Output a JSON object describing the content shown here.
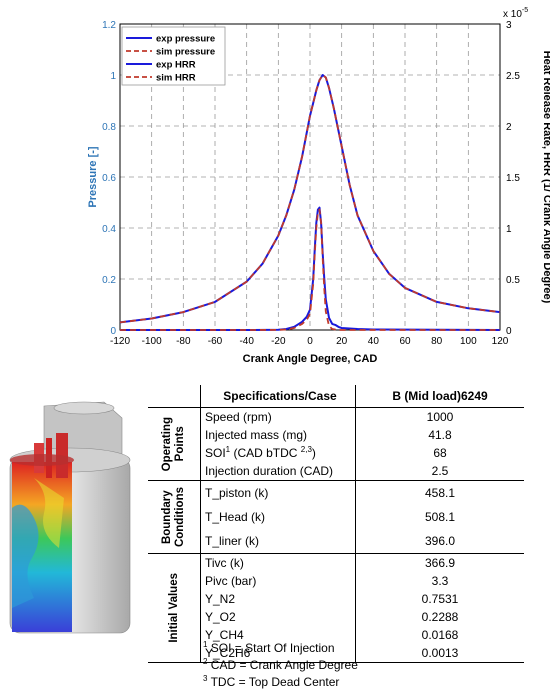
{
  "chart_data": {
    "type": "line",
    "xlabel": "Crank Angle Degree, CAD",
    "ylabel_left": "Pressure [-]",
    "ylabel_right": "Heat Release Rate, HRR (1/ Crank Angle Degree)",
    "right_axis_exponent": "x 10",
    "right_axis_exponent_power": "-5",
    "xlim": [
      -120,
      120
    ],
    "ylim_left": [
      0,
      1.2
    ],
    "ylim_right": [
      0,
      3
    ],
    "x_ticks": [
      "-120",
      "-100",
      "-80",
      "-60",
      "-40",
      "-20",
      "0",
      "20",
      "40",
      "60",
      "80",
      "100",
      "120"
    ],
    "y_left_ticks": [
      "0",
      "0.2",
      "0.4",
      "0.6",
      "0.8",
      "1",
      "1.2"
    ],
    "y_right_ticks": [
      "0",
      "0.5",
      "1",
      "1.5",
      "2",
      "2.5",
      "3"
    ],
    "grid": true,
    "legend_position": "top-left",
    "colors": {
      "exp": "#1a1adb",
      "sim": "#c0392b",
      "left_axis": "#2e75b6"
    },
    "series": [
      {
        "name": "exp pressure",
        "axis": "left",
        "style": "solid",
        "x": [
          -120,
          -100,
          -80,
          -60,
          -40,
          -30,
          -20,
          -15,
          -10,
          -5,
          0,
          2,
          4,
          6,
          8,
          10,
          12,
          15,
          20,
          25,
          30,
          40,
          50,
          60,
          80,
          100,
          120
        ],
        "y": [
          0.03,
          0.045,
          0.07,
          0.11,
          0.19,
          0.26,
          0.37,
          0.45,
          0.55,
          0.68,
          0.84,
          0.89,
          0.94,
          0.98,
          1.0,
          0.99,
          0.95,
          0.87,
          0.72,
          0.57,
          0.45,
          0.31,
          0.22,
          0.165,
          0.11,
          0.085,
          0.07
        ]
      },
      {
        "name": "sim pressure",
        "axis": "left",
        "style": "dashed",
        "x": [
          -120,
          -100,
          -80,
          -60,
          -40,
          -30,
          -20,
          -15,
          -10,
          -5,
          0,
          2,
          4,
          6,
          8,
          10,
          12,
          15,
          20,
          25,
          30,
          40,
          50,
          60,
          80,
          100,
          120
        ],
        "y": [
          0.03,
          0.045,
          0.07,
          0.11,
          0.19,
          0.26,
          0.37,
          0.45,
          0.55,
          0.68,
          0.84,
          0.89,
          0.94,
          0.98,
          1.0,
          0.99,
          0.95,
          0.87,
          0.72,
          0.57,
          0.45,
          0.31,
          0.22,
          0.165,
          0.11,
          0.085,
          0.07
        ]
      },
      {
        "name": "exp HRR",
        "axis": "right",
        "style": "solid",
        "x": [
          -120,
          -40,
          -20,
          -15,
          -10,
          -5,
          -2,
          0,
          2,
          3,
          4,
          5,
          6,
          7,
          8,
          9,
          10,
          12,
          14,
          16,
          18,
          20,
          30,
          40,
          120
        ],
        "y": [
          0,
          0,
          0.002,
          0.01,
          0.03,
          0.08,
          0.13,
          0.2,
          0.5,
          0.8,
          1.05,
          1.18,
          1.2,
          1.05,
          0.75,
          0.5,
          0.3,
          0.12,
          0.06,
          0.05,
          0.03,
          0.02,
          0.01,
          0.005,
          0
        ]
      },
      {
        "name": "sim HRR",
        "axis": "right",
        "style": "dashed",
        "x": [
          -120,
          -40,
          -20,
          -15,
          -10,
          -5,
          -2,
          0,
          2,
          3,
          4,
          5,
          6,
          7,
          8,
          9,
          10,
          12,
          14,
          16,
          18,
          20,
          30,
          40,
          120
        ],
        "y": [
          0,
          0,
          0.001,
          0.005,
          0.02,
          0.06,
          0.1,
          0.16,
          0.45,
          0.75,
          1.0,
          1.15,
          1.18,
          1.05,
          0.7,
          0.4,
          0.18,
          0.04,
          0.01,
          0.005,
          0,
          0,
          0,
          0,
          0
        ]
      }
    ]
  },
  "table": {
    "header": {
      "param": "Specifications/Case",
      "value": "B (Mid load)6249"
    },
    "groups": [
      {
        "label_line1": "Operating",
        "label_line2": "Points",
        "rows": [
          {
            "param": "Speed (rpm)",
            "value": "1000"
          },
          {
            "param": "Injected mass (mg)",
            "value": "41.8"
          },
          {
            "param_main": "SOI",
            "param_sup1": "1",
            "param_mid": " (CAD bTDC ",
            "param_sup2": "2,3",
            "param_end": ")",
            "value": "68"
          },
          {
            "param": "Injection duration (CAD)",
            "value": "2.5"
          }
        ]
      },
      {
        "label_line1": "Boundary",
        "label_line2": "Conditions",
        "rows": [
          {
            "param": "T_piston (k)",
            "value": "458.1"
          },
          {
            "param": "T_Head (k)",
            "value": "508.1"
          },
          {
            "param": "T_liner (k)",
            "value": "396.0"
          }
        ]
      },
      {
        "label_line1": "Initial Values",
        "label_line2": "",
        "rows": [
          {
            "param": "Tivc (k)",
            "value": "366.9"
          },
          {
            "param": "Pivc (bar)",
            "value": "3.3"
          },
          {
            "param": "Y_N2",
            "value": "0.7531"
          },
          {
            "param": "Y_O2",
            "value": "0.2288"
          },
          {
            "param": "Y_CH4",
            "value": "0.0168"
          },
          {
            "param": "Y_C2H6",
            "value": "0.0013"
          }
        ]
      }
    ]
  },
  "footnotes": [
    {
      "num": "1",
      "text": "SOI = Start Of Injection"
    },
    {
      "num": "2",
      "text": "CAD = Crank Angle Degree"
    },
    {
      "num": "3",
      "text": "TDC = Top Dead Center"
    }
  ]
}
